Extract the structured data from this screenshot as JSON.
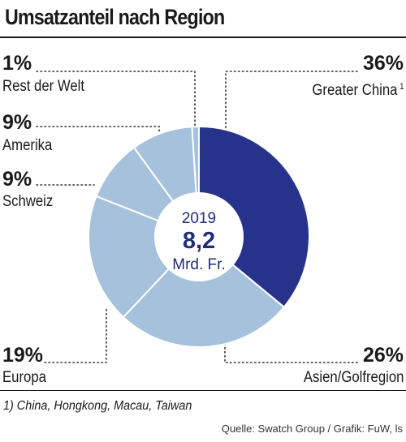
{
  "chart_data": {
    "type": "pie",
    "title": "Umsatzanteil nach Region",
    "categories": [
      "Greater China",
      "Asien/Golfregion",
      "Europa",
      "Schweiz",
      "Amerika",
      "Rest der Welt"
    ],
    "values": [
      36,
      26,
      19,
      9,
      9,
      1
    ],
    "labels": [
      {
        "pct": "36%",
        "name": "Greater China",
        "note": "1"
      },
      {
        "pct": "26%",
        "name": "Asien/Golfregion"
      },
      {
        "pct": "19%",
        "name": "Europa"
      },
      {
        "pct": "9%",
        "name": "Schweiz"
      },
      {
        "pct": "9%",
        "name": "Amerika"
      },
      {
        "pct": "1%",
        "name": "Rest der Welt"
      }
    ],
    "colors": [
      "#27338a",
      "#a6c1dc",
      "#a6c1dc",
      "#a6c1dc",
      "#a6c1dc",
      "#a6c1dc"
    ],
    "center": {
      "year": "2019",
      "value": "8,2",
      "unit": "Mrd. Fr."
    }
  },
  "footnote": "1) China, Hongkong, Macau, Taiwan",
  "source": "Quelle: Swatch Group / Grafik: FuW, ls"
}
